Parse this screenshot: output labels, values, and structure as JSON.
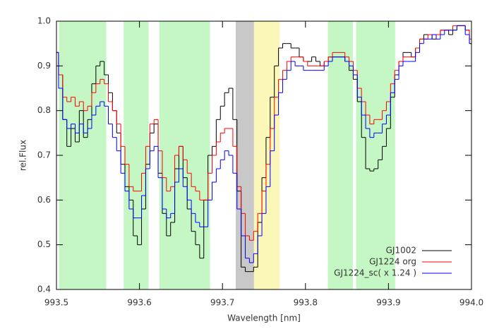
{
  "chart_data": {
    "type": "step",
    "xlabel": "Wavelength [nm]",
    "ylabel": "rel.Flux",
    "xlim": [
      993.5,
      994.0
    ],
    "ylim": [
      0.4,
      1.0
    ],
    "xticks": [
      993.5,
      993.6,
      993.7,
      993.8,
      993.9,
      {
        "value": 994.0,
        "label": "994.0"
      }
    ],
    "yticks": [
      0.4,
      0.5,
      0.6,
      0.7,
      0.8,
      0.9,
      {
        "value": 1.0,
        "label": "1.0"
      }
    ],
    "legend": "lower right",
    "shaded_regions": [
      {
        "xlim": [
          993.503,
          993.56
        ],
        "color": "#c4f7c4"
      },
      {
        "xlim": [
          993.581,
          993.611
        ],
        "color": "#c4f7c4"
      },
      {
        "xlim": [
          993.624,
          993.685
        ],
        "color": "#c4f7c4"
      },
      {
        "xlim": [
          993.716,
          993.738
        ],
        "color": "#c8c8c8"
      },
      {
        "xlim": [
          993.738,
          993.769
        ],
        "color": "#fbf7b8"
      },
      {
        "xlim": [
          993.827,
          993.857
        ],
        "color": "#c4f7c4"
      },
      {
        "xlim": [
          993.861,
          993.908
        ],
        "color": "#c4f7c4"
      }
    ],
    "x": [
      993.5,
      993.505,
      993.51,
      993.515,
      993.52,
      993.525,
      993.53,
      993.535,
      993.54,
      993.545,
      993.55,
      993.555,
      993.56,
      993.565,
      993.57,
      993.575,
      993.58,
      993.585,
      993.59,
      993.595,
      993.6,
      993.605,
      993.61,
      993.615,
      993.62,
      993.625,
      993.63,
      993.635,
      993.64,
      993.645,
      993.65,
      993.655,
      993.66,
      993.665,
      993.67,
      993.675,
      993.68,
      993.685,
      993.69,
      993.695,
      993.7,
      993.705,
      993.71,
      993.715,
      993.72,
      993.725,
      993.73,
      993.735,
      993.74,
      993.745,
      993.75,
      993.755,
      993.76,
      993.765,
      993.77,
      993.775,
      993.78,
      993.785,
      993.79,
      993.795,
      993.8,
      993.805,
      993.81,
      993.815,
      993.82,
      993.825,
      993.83,
      993.835,
      993.84,
      993.845,
      993.85,
      993.855,
      993.86,
      993.865,
      993.87,
      993.875,
      993.88,
      993.885,
      993.89,
      993.895,
      993.9,
      993.905,
      993.91,
      993.915,
      993.92,
      993.925,
      993.93,
      993.935,
      993.94,
      993.945,
      993.95,
      993.955,
      993.96,
      993.965,
      993.97,
      993.975,
      993.98,
      993.985,
      993.99,
      993.995,
      994.0
    ],
    "series": [
      {
        "name": "GJ1002",
        "color": "#000000",
        "values": [
          0.93,
          0.88,
          0.78,
          0.72,
          0.76,
          0.73,
          0.8,
          0.74,
          0.78,
          0.86,
          0.9,
          0.91,
          0.88,
          0.84,
          0.8,
          0.75,
          0.68,
          0.63,
          0.6,
          0.52,
          0.5,
          0.58,
          0.68,
          0.75,
          0.77,
          0.66,
          0.57,
          0.52,
          0.55,
          0.67,
          0.72,
          0.65,
          0.58,
          0.53,
          0.5,
          0.47,
          0.6,
          0.7,
          0.72,
          0.78,
          0.81,
          0.84,
          0.85,
          0.78,
          0.62,
          0.45,
          0.44,
          0.44,
          0.45,
          0.55,
          0.65,
          0.74,
          0.83,
          0.9,
          0.94,
          0.95,
          0.95,
          0.94,
          0.94,
          0.92,
          0.91,
          0.91,
          0.92,
          0.91,
          0.9,
          0.91,
          0.92,
          0.92,
          0.92,
          0.92,
          0.91,
          0.89,
          0.87,
          0.82,
          0.74,
          0.67,
          0.665,
          0.67,
          0.69,
          0.72,
          0.76,
          0.83,
          0.88,
          0.91,
          0.93,
          0.93,
          0.92,
          0.94,
          0.96,
          0.97,
          0.97,
          0.96,
          0.97,
          0.98,
          0.98,
          0.97,
          0.98,
          0.99,
          0.99,
          0.98,
          0.95
        ]
      },
      {
        "name": "GJ1224 org",
        "color": "#ff0000",
        "values": [
          0.93,
          0.88,
          0.83,
          0.82,
          0.83,
          0.81,
          0.82,
          0.8,
          0.81,
          0.84,
          0.86,
          0.87,
          0.86,
          0.82,
          0.8,
          0.77,
          0.72,
          0.68,
          0.63,
          0.62,
          0.62,
          0.66,
          0.72,
          0.77,
          0.78,
          0.71,
          0.65,
          0.62,
          0.63,
          0.7,
          0.72,
          0.69,
          0.66,
          0.63,
          0.62,
          0.6,
          0.6,
          0.66,
          0.7,
          0.73,
          0.75,
          0.76,
          0.76,
          0.72,
          0.63,
          0.57,
          0.52,
          0.51,
          0.53,
          0.57,
          0.62,
          0.68,
          0.76,
          0.83,
          0.87,
          0.89,
          0.91,
          0.92,
          0.92,
          0.92,
          0.91,
          0.9,
          0.9,
          0.9,
          0.9,
          0.91,
          0.92,
          0.93,
          0.93,
          0.93,
          0.92,
          0.91,
          0.89,
          0.85,
          0.82,
          0.79,
          0.77,
          0.78,
          0.78,
          0.8,
          0.82,
          0.86,
          0.89,
          0.91,
          0.92,
          0.92,
          0.92,
          0.94,
          0.96,
          0.96,
          0.97,
          0.97,
          0.97,
          0.98,
          0.98,
          0.98,
          0.99,
          0.99,
          0.99,
          0.98,
          0.96
        ]
      },
      {
        "name": "GJ1224_sc( x 1.24 )",
        "color": "#0000ff",
        "values": [
          0.93,
          0.85,
          0.78,
          0.76,
          0.77,
          0.75,
          0.77,
          0.75,
          0.76,
          0.79,
          0.81,
          0.82,
          0.81,
          0.77,
          0.74,
          0.71,
          0.66,
          0.62,
          0.58,
          0.56,
          0.56,
          0.61,
          0.67,
          0.71,
          0.72,
          0.65,
          0.58,
          0.56,
          0.57,
          0.64,
          0.67,
          0.63,
          0.6,
          0.57,
          0.55,
          0.54,
          0.54,
          0.6,
          0.64,
          0.67,
          0.69,
          0.71,
          0.7,
          0.66,
          0.58,
          0.52,
          0.47,
          0.46,
          0.48,
          0.52,
          0.57,
          0.63,
          0.71,
          0.79,
          0.84,
          0.87,
          0.89,
          0.91,
          0.9,
          0.9,
          0.89,
          0.89,
          0.89,
          0.89,
          0.89,
          0.9,
          0.91,
          0.92,
          0.92,
          0.92,
          0.91,
          0.9,
          0.88,
          0.83,
          0.79,
          0.76,
          0.74,
          0.75,
          0.75,
          0.77,
          0.79,
          0.84,
          0.87,
          0.9,
          0.91,
          0.91,
          0.91,
          0.93,
          0.95,
          0.96,
          0.96,
          0.97,
          0.96,
          0.97,
          0.98,
          0.98,
          0.98,
          0.99,
          0.99,
          0.97,
          0.95
        ]
      }
    ]
  }
}
